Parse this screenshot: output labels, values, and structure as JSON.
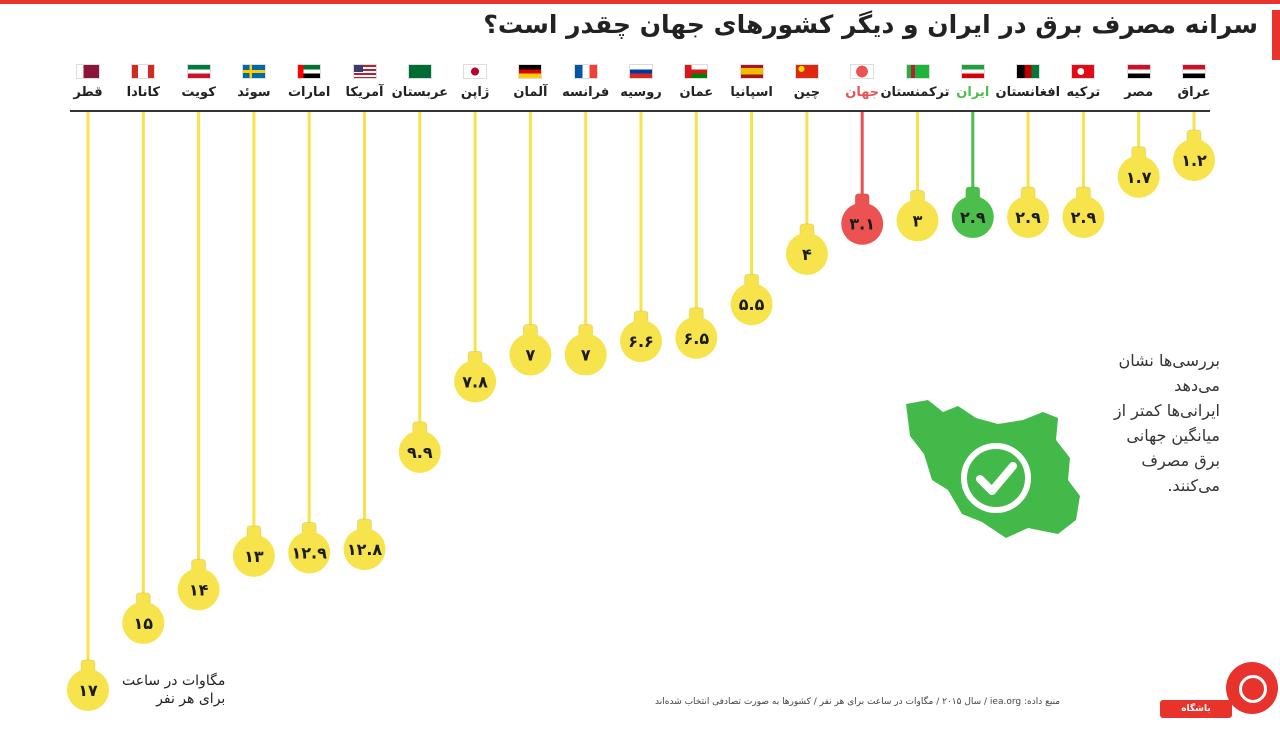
{
  "title": "سرانه مصرف برق در ایران و دیگر کشورهای جهان چقدر است؟",
  "colors": {
    "accent": "#e8332d",
    "bulb_default": "#f7e34b",
    "bulb_iran": "#4cbe4c",
    "bulb_world": "#ec5252"
  },
  "note": [
    "بررسی‌ها نشان می‌دهد",
    "ایرانی‌ها کمتر از",
    "میانگین جهانی",
    "برق مصرف",
    "می‌کنند."
  ],
  "unit_label": [
    "مگاوات در ساعت",
    "برای هر نفر"
  ],
  "source": "منبع داده: iea.org / سال ۲۰۱۵ / مگاوات در ساعت برای هر نفر / کشورها به صورت تصادفی انتخاب شده‌اند",
  "logo_text": "باشگاه خبرنگاران",
  "chart_data": {
    "type": "bar",
    "title": "سرانه مصرف برق در ایران و دیگر کشورهای جهان چقدر است؟",
    "ylabel": "مگاوات در ساعت برای هر نفر",
    "ylim": [
      0,
      17
    ],
    "categories": [
      "قطر",
      "کانادا",
      "کویت",
      "سوئد",
      "امارات",
      "آمریکا",
      "عربستان",
      "ژاپن",
      "آلمان",
      "فرانسه",
      "روسیه",
      "عمان",
      "اسپانیا",
      "چین",
      "جهان",
      "ترکمنستان",
      "ایران",
      "افغانستان",
      "ترکیه",
      "مصر",
      "عراق"
    ],
    "values": [
      17,
      15,
      14,
      13,
      12.9,
      12.8,
      9.9,
      7.8,
      7,
      7,
      6.6,
      6.5,
      5.5,
      4,
      3.1,
      3,
      2.9,
      2.9,
      2.9,
      1.7,
      1.2
    ],
    "labels": [
      "۱۷",
      "۱۵",
      "۱۴",
      "۱۳",
      "۱۲.۹",
      "۱۲.۸",
      "۹.۹",
      "۷.۸",
      "۷",
      "۷",
      "۶.۶",
      "۶.۵",
      "۵.۵",
      "۴",
      "۳.۱",
      "۳",
      "۲.۹",
      "۲.۹",
      "۲.۹",
      "۱.۷",
      "۱.۲"
    ],
    "highlight": {
      "world": "جهان",
      "iran": "ایران"
    },
    "flags": [
      "qatar",
      "canada",
      "kuwait",
      "sweden",
      "uae",
      "usa",
      "saudi-arabia",
      "japan",
      "germany",
      "france",
      "russia",
      "oman",
      "spain",
      "china",
      "world-globe",
      "turkmenistan",
      "iran",
      "afghanistan",
      "turkey",
      "egypt",
      "iraq"
    ]
  }
}
